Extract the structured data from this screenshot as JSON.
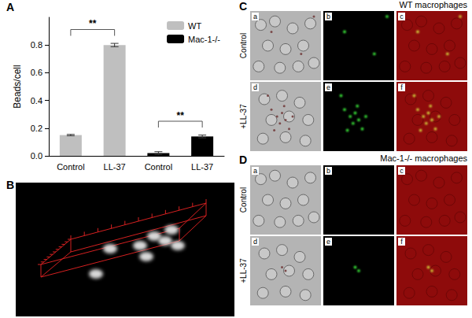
{
  "chart_data": {
    "type": "bar",
    "y_label": "Beads/cell",
    "categories": [
      "Control",
      "LL-37",
      "Control",
      "LL-37"
    ],
    "series": [
      {
        "name": "WT",
        "color": "#bfbfbf",
        "values": [
          0.15,
          0.8,
          null,
          null
        ],
        "errors": [
          0.005,
          0.012,
          null,
          null
        ]
      },
      {
        "name": "Mac-1-/-",
        "color": "#000000",
        "values": [
          null,
          null,
          0.02,
          0.14
        ],
        "errors": [
          null,
          null,
          0.01,
          0.01
        ]
      }
    ],
    "annotations": [
      {
        "text": "**",
        "from": 0,
        "to": 1
      },
      {
        "text": "**",
        "from": 2,
        "to": 3
      }
    ],
    "ylim": [
      0,
      1.0
    ],
    "yticks": [
      {
        "value": 0,
        "label": "0.0"
      },
      0.2,
      0.4,
      0.6,
      0.8
    ],
    "grid": false,
    "legend": "upper right"
  },
  "figure": {
    "panel_labels": [
      "A",
      "B",
      "C",
      "D"
    ],
    "panel_C": {
      "title": "WT macrophages",
      "rows": [
        "Control",
        "+LL-37"
      ],
      "sub_labels": [
        "a",
        "b",
        "c",
        "d",
        "e",
        "f"
      ]
    },
    "panel_D": {
      "title": "Mac-1-/- macrophages",
      "rows": [
        "Control",
        "+LL-37"
      ],
      "sub_labels": [
        "a",
        "b",
        "c",
        "d",
        "e",
        "f"
      ]
    }
  }
}
